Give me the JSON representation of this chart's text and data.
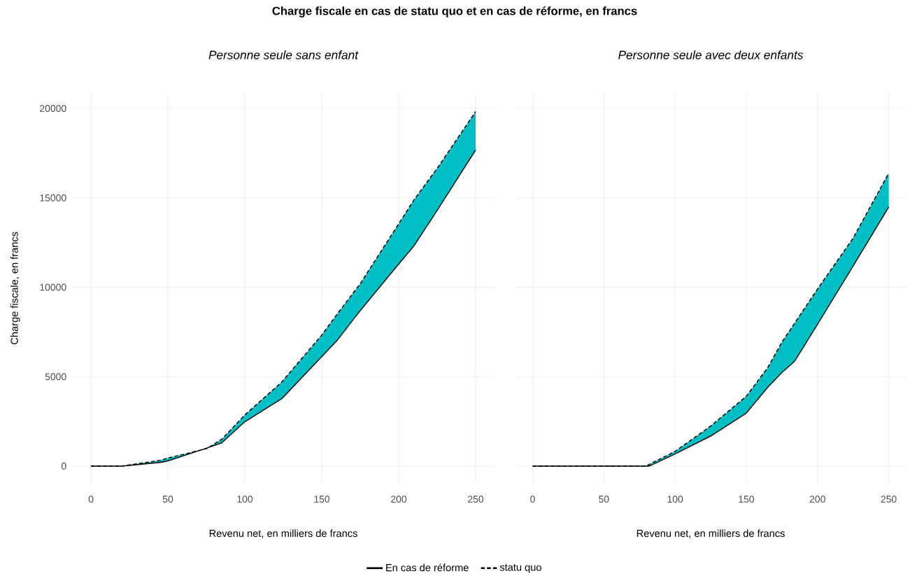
{
  "chart_data": [
    {
      "type": "line",
      "title": "Charge fiscale en cas de statu quo et en cas de réforme, en francs",
      "subtitle": "Personne seule sans enfant",
      "xlabel": "Revenu net, en milliers de francs",
      "ylabel": "Charge fiscale, en francs",
      "x": [
        0,
        20,
        45,
        50,
        75,
        85,
        100,
        124,
        150,
        160,
        175,
        200,
        210,
        225,
        250
      ],
      "series": [
        {
          "name": "En cas de réforme",
          "color": "#000000",
          "line_style": "solid",
          "values": [
            0,
            0,
            200,
            290,
            1000,
            1300,
            2480,
            3770,
            6120,
            7030,
            8700,
            11300,
            12330,
            14300,
            17680
          ]
        },
        {
          "name": "statu quo",
          "color": "#000000",
          "line_style": "dashed",
          "values": [
            0,
            0,
            320,
            450,
            970,
            1500,
            2860,
            4700,
            7330,
            8500,
            10200,
            13550,
            14900,
            16650,
            19830
          ],
          "lower": [
            0,
            0,
            200,
            290,
            1000,
            1300,
            2480,
            3770,
            6120,
            7030,
            8700,
            11300,
            12330,
            14300,
            17680
          ],
          "upper": [
            0,
            0,
            320,
            450,
            970,
            1500,
            2860,
            4700,
            7330,
            8500,
            10200,
            13550,
            14900,
            16650,
            19830
          ]
        }
      ],
      "xlim": [
        -12.5,
        262.5
      ],
      "ylim": [
        -1000,
        20900
      ],
      "xticks": [
        0,
        50,
        100,
        150,
        200,
        250
      ],
      "yticks": [
        0,
        5000,
        10000,
        15000,
        20000
      ],
      "grid": true,
      "legend": "bottom"
    },
    {
      "type": "line",
      "subtitle": "Personne seule avec deux enfants",
      "xlabel": "Revenu net, en milliers de francs",
      "x": [
        0,
        50,
        80,
        82,
        100,
        125,
        150,
        165,
        175,
        184,
        200,
        225,
        250
      ],
      "series": [
        {
          "color": "#000000",
          "line_style": "solid",
          "values": [
            0,
            0,
            0,
            0,
            680,
            1680,
            2960,
            4400,
            5230,
            5870,
            7930,
            11190,
            14490
          ]
        },
        {
          "color": "#000000",
          "line_style": "dashed",
          "values": [
            0,
            0,
            0,
            100,
            820,
            2240,
            3900,
            5500,
            6930,
            8000,
            9900,
            12750,
            16380
          ],
          "lower": [
            0,
            0,
            0,
            0,
            680,
            1680,
            2960,
            4400,
            5230,
            5870,
            7930,
            11190,
            14490
          ],
          "upper": [
            0,
            0,
            0,
            100,
            820,
            2240,
            3900,
            5500,
            6930,
            8000,
            9900,
            12750,
            16380
          ]
        }
      ],
      "xlim": [
        -12.5,
        262.5
      ],
      "ylim": [
        -1000,
        20900
      ],
      "xticks": [
        0,
        50,
        100,
        150,
        200,
        250
      ],
      "yticks": [
        0,
        5000,
        10000,
        15000,
        20000
      ],
      "grid": true,
      "tick_labels": "x"
    }
  ]
}
